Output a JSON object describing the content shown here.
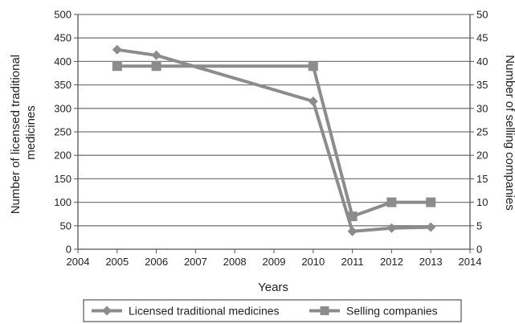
{
  "chart_data": {
    "type": "line",
    "title": "",
    "xlabel": "Years",
    "ylabel_left": [
      "Number of licensed traditional",
      "medicines"
    ],
    "ylabel_right": "Number of selling companies",
    "x_ticks": [
      2004,
      2005,
      2006,
      2007,
      2008,
      2009,
      2010,
      2011,
      2012,
      2013,
      2014
    ],
    "xlim": [
      2004,
      2014
    ],
    "ylim_left": [
      0,
      500
    ],
    "ylim_right": [
      0,
      50
    ],
    "y_ticks_left": [
      0,
      50,
      100,
      150,
      200,
      250,
      300,
      350,
      400,
      450,
      500
    ],
    "y_ticks_right": [
      0,
      5,
      10,
      15,
      20,
      25,
      30,
      35,
      40,
      45,
      50
    ],
    "grid": true,
    "legend_position": "bottom",
    "series": [
      {
        "name": "Licensed traditional medicines",
        "axis": "left",
        "marker": "diamond",
        "x": [
          2005,
          2006,
          2010,
          2011,
          2012,
          2013
        ],
        "values": [
          425,
          413,
          315,
          38,
          45,
          47
        ]
      },
      {
        "name": "Selling companies",
        "axis": "right",
        "marker": "square",
        "x": [
          2005,
          2006,
          2010,
          2011,
          2012,
          2013
        ],
        "values": [
          39,
          39,
          39,
          7,
          10,
          10
        ]
      }
    ],
    "colors": {
      "series": "#8c8c8c",
      "grid": "#7a7a7a",
      "axis": "#555555",
      "text": "#222222"
    }
  }
}
